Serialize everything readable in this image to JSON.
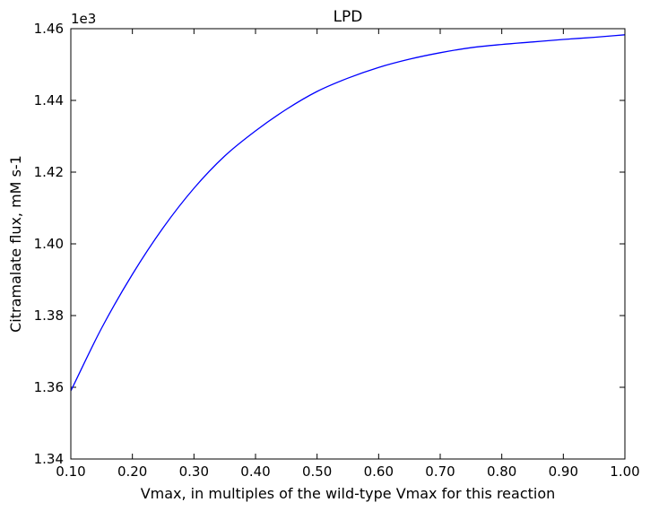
{
  "chart_data": {
    "type": "line",
    "title": "LPD",
    "xlabel": "Vmax, in multiples of the wild-type Vmax for this reaction",
    "ylabel": "Citramalate flux, mM s-1",
    "y_offset_label": "1e3",
    "xlim": [
      0.1,
      1.0
    ],
    "ylim": [
      1.34,
      1.46
    ],
    "x_ticks": [
      0.1,
      0.2,
      0.3,
      0.4,
      0.5,
      0.6,
      0.7,
      0.8,
      0.9,
      1.0
    ],
    "x_tick_labels": [
      "0.10",
      "0.20",
      "0.30",
      "0.40",
      "0.50",
      "0.60",
      "0.70",
      "0.80",
      "0.90",
      "1.00"
    ],
    "y_ticks": [
      1.34,
      1.36,
      1.38,
      1.4,
      1.42,
      1.44,
      1.46
    ],
    "y_tick_labels": [
      "1.34",
      "1.36",
      "1.38",
      "1.40",
      "1.42",
      "1.44",
      "1.46"
    ],
    "grid": false,
    "series": [
      {
        "color": "#0000ff",
        "x": [
          0.1,
          0.15,
          0.2,
          0.25,
          0.3,
          0.35,
          0.4,
          0.45,
          0.5,
          0.55,
          0.6,
          0.65,
          0.7,
          0.75,
          0.8,
          0.85,
          0.9,
          0.95,
          1.0
        ],
        "y": [
          1.359,
          1.3765,
          1.3915,
          1.4045,
          1.4155,
          1.4245,
          1.4315,
          1.4375,
          1.4425,
          1.4462,
          1.4492,
          1.4515,
          1.4533,
          1.4547,
          1.4556,
          1.4563,
          1.457,
          1.4576,
          1.4583
        ]
      }
    ]
  }
}
